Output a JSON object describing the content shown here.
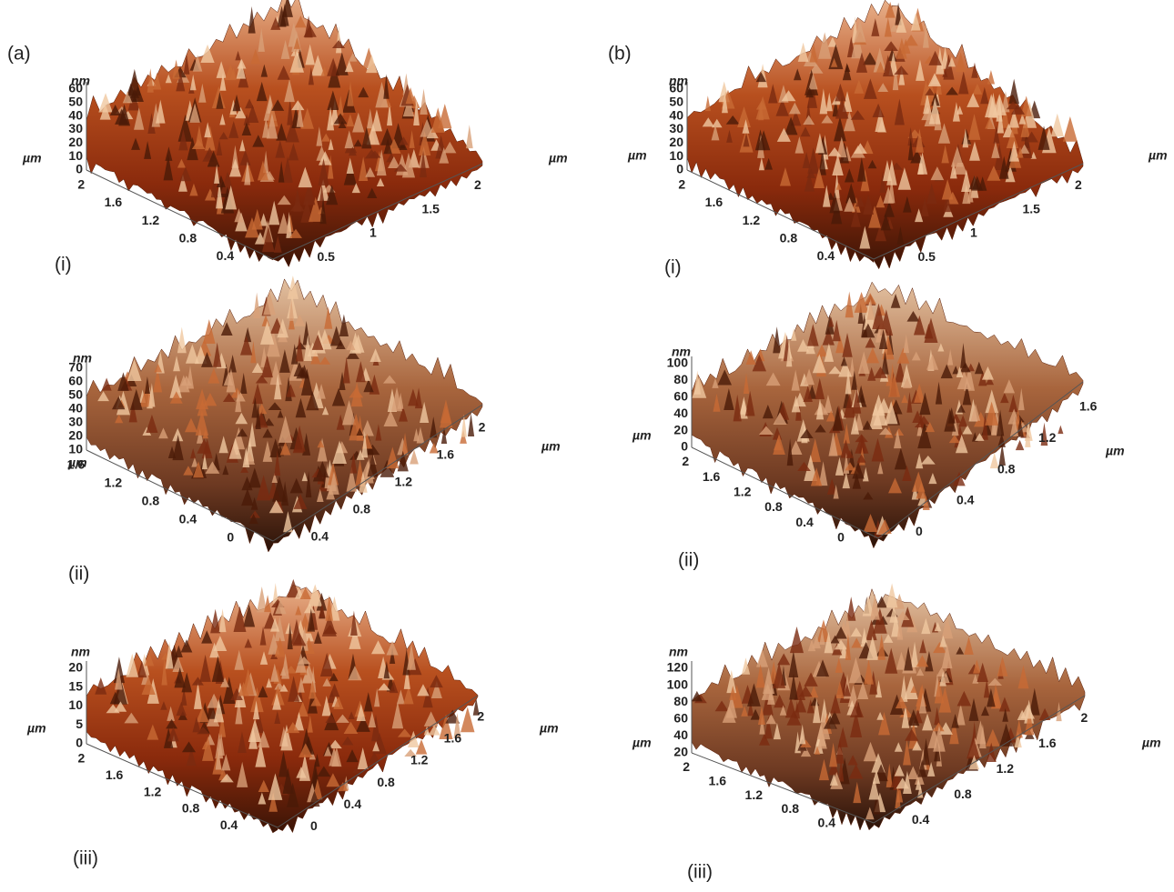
{
  "panels": [
    {
      "label": "(a)",
      "plots": [
        {
          "label": "(i)",
          "z_unit": "nm",
          "z_ticks": [
            "0",
            "10",
            "20",
            "30",
            "40",
            "50",
            "60"
          ],
          "y_unit": "µm",
          "y_ticks": [
            "2",
            "1.6",
            "1.2",
            "0.8",
            "0.4"
          ],
          "x_unit": "µm",
          "x_ticks": [
            "0.5",
            "1",
            "1.5",
            "2"
          ]
        },
        {
          "label": "(ii)",
          "z_unit": "nm",
          "z_ticks": [
            "10",
            "20",
            "30",
            "40",
            "50",
            "60",
            "70"
          ],
          "y_unit": "µm",
          "y_ticks": [
            "1.6",
            "1.2",
            "0.8",
            "0.4",
            "0"
          ],
          "x_unit": "µm",
          "x_ticks": [
            "0.4",
            "0.8",
            "1.2",
            "1.6",
            "2"
          ]
        },
        {
          "label": "(iii)",
          "z_unit": "nm",
          "z_ticks": [
            "0",
            "5",
            "10",
            "15",
            "20"
          ],
          "y_unit": "µm",
          "y_ticks": [
            "2",
            "1.6",
            "1.2",
            "0.8",
            "0.4"
          ],
          "x_unit": "µm",
          "x_ticks": [
            "0",
            "0.4",
            "0.8",
            "1.2",
            "1.6",
            "2"
          ]
        }
      ]
    },
    {
      "label": "(b)",
      "plots": [
        {
          "label": "(i)",
          "z_unit": "nm",
          "z_ticks": [
            "0",
            "10",
            "20",
            "30",
            "40",
            "50",
            "60"
          ],
          "y_unit": "µm",
          "y_ticks": [
            "2",
            "1.6",
            "1.2",
            "0.8",
            "0.4"
          ],
          "x_unit": "µm",
          "x_ticks": [
            "0.5",
            "1",
            "1.5",
            "2"
          ]
        },
        {
          "label": "(ii)",
          "z_unit": "nm",
          "z_ticks": [
            "0",
            "20",
            "40",
            "60",
            "80",
            "100"
          ],
          "y_unit": "µm",
          "y_ticks": [
            "2",
            "1.6",
            "1.2",
            "0.8",
            "0.4",
            "0"
          ],
          "x_unit": "µm",
          "x_ticks": [
            "0",
            "0.4",
            "0.8",
            "1.2",
            "1.6"
          ]
        },
        {
          "label": "(iii)",
          "z_unit": "nm",
          "z_ticks": [
            "20",
            "40",
            "60",
            "80",
            "100",
            "120"
          ],
          "y_unit": "µm",
          "y_ticks": [
            "2",
            "1.6",
            "1.2",
            "0.8",
            "0.4"
          ],
          "x_unit": "µm",
          "x_ticks": [
            "0.4",
            "0.8",
            "1.2",
            "1.6",
            "2"
          ]
        }
      ]
    }
  ]
}
